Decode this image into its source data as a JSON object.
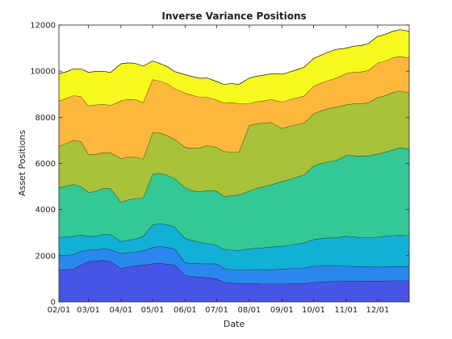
{
  "chart_data": {
    "type": "area",
    "stacked": true,
    "title": "Inverse Variance Positions",
    "xlabel": "Date",
    "ylabel": "Asset Positions",
    "xlim": [
      "02/01",
      "12/31"
    ],
    "ylim": [
      0,
      12000
    ],
    "xticks": [
      "02/01",
      "03/01",
      "04/01",
      "05/01",
      "06/01",
      "07/01",
      "08/01",
      "09/01",
      "10/01",
      "11/01",
      "12/01"
    ],
    "yticks": [
      0,
      2000,
      4000,
      6000,
      8000,
      10000,
      12000
    ],
    "grid": false,
    "legend": "none",
    "x": [
      "02/01",
      "02/08",
      "02/15",
      "02/22",
      "03/01",
      "03/08",
      "03/15",
      "03/22",
      "04/01",
      "04/08",
      "04/15",
      "04/22",
      "05/01",
      "05/08",
      "05/15",
      "05/22",
      "06/01",
      "06/08",
      "06/15",
      "06/22",
      "07/01",
      "07/08",
      "07/15",
      "07/22",
      "08/01",
      "08/08",
      "08/15",
      "08/22",
      "09/01",
      "09/08",
      "09/15",
      "09/22",
      "10/01",
      "10/08",
      "10/15",
      "10/22",
      "11/01",
      "11/08",
      "11/15",
      "11/22",
      "12/01",
      "12/08",
      "12/15",
      "12/22",
      "12/31"
    ],
    "series": [
      {
        "color": "#4655e6",
        "values": [
          1400,
          1400,
          1420,
          1600,
          1750,
          1780,
          1800,
          1750,
          1450,
          1520,
          1560,
          1600,
          1660,
          1680,
          1640,
          1600,
          1150,
          1100,
          1080,
          1050,
          1000,
          850,
          820,
          800,
          800,
          800,
          780,
          780,
          780,
          790,
          800,
          800,
          850,
          870,
          880,
          880,
          900,
          900,
          900,
          910,
          910,
          910,
          920,
          920,
          920
        ]
      },
      {
        "color": "#2a87ee",
        "values": [
          600,
          620,
          630,
          600,
          500,
          480,
          500,
          520,
          650,
          620,
          600,
          620,
          700,
          720,
          720,
          700,
          550,
          560,
          580,
          600,
          650,
          600,
          590,
          580,
          600,
          610,
          620,
          620,
          640,
          650,
          660,
          680,
          700,
          700,
          700,
          690,
          650,
          640,
          630,
          620,
          600,
          610,
          620,
          620,
          620
        ]
      },
      {
        "color": "#12b0d6",
        "values": [
          800,
          800,
          800,
          700,
          600,
          580,
          620,
          650,
          520,
          540,
          580,
          620,
          980,
          1000,
          980,
          950,
          1050,
          1000,
          920,
          880,
          800,
          820,
          840,
          860,
          900,
          920,
          950,
          980,
          1000,
          1020,
          1050,
          1080,
          1150,
          1180,
          1200,
          1200,
          1300,
          1280,
          1260,
          1250,
          1300,
          1320,
          1340,
          1350,
          1340
        ]
      },
      {
        "color": "#34c895",
        "values": [
          2150,
          2200,
          2250,
          2100,
          1900,
          1950,
          2000,
          2000,
          1700,
          1750,
          1750,
          1650,
          2200,
          2180,
          2150,
          2100,
          2200,
          2150,
          2200,
          2300,
          2350,
          2300,
          2350,
          2400,
          2500,
          2600,
          2650,
          2700,
          2800,
          2850,
          2900,
          2950,
          3200,
          3250,
          3300,
          3350,
          3500,
          3520,
          3530,
          3550,
          3600,
          3650,
          3700,
          3800,
          3750
        ]
      },
      {
        "color": "#a8c23a",
        "values": [
          1800,
          1850,
          1900,
          1950,
          1650,
          1600,
          1550,
          1550,
          1900,
          1850,
          1800,
          1700,
          1800,
          1750,
          1720,
          1700,
          1750,
          1850,
          1900,
          1950,
          1900,
          1950,
          1900,
          1850,
          2850,
          2800,
          2750,
          2700,
          2300,
          2300,
          2280,
          2250,
          2250,
          2280,
          2300,
          2320,
          2200,
          2250,
          2270,
          2300,
          2450,
          2450,
          2500,
          2450,
          2450
        ]
      },
      {
        "color": "#fcb83c",
        "values": [
          1950,
          1950,
          1950,
          1950,
          2100,
          2150,
          2100,
          2050,
          2500,
          2500,
          2480,
          2450,
          2300,
          2250,
          2250,
          2200,
          2350,
          2300,
          2200,
          2100,
          2050,
          2100,
          2150,
          2100,
          950,
          950,
          970,
          990,
          1150,
          1150,
          1150,
          1160,
          1200,
          1200,
          1220,
          1250,
          1350,
          1370,
          1380,
          1400,
          1500,
          1500,
          1500,
          1500,
          1500
        ]
      },
      {
        "color": "#f6f91c",
        "values": [
          1200,
          1150,
          1150,
          1200,
          1450,
          1450,
          1430,
          1420,
          1600,
          1580,
          1560,
          1580,
          800,
          750,
          740,
          730,
          800,
          800,
          810,
          820,
          800,
          800,
          820,
          830,
          1100,
          1100,
          1110,
          1120,
          1200,
          1200,
          1220,
          1250,
          1200,
          1210,
          1220,
          1250,
          1100,
          1120,
          1140,
          1160,
          1150,
          1150,
          1140,
          1160,
          1150
        ]
      }
    ]
  }
}
